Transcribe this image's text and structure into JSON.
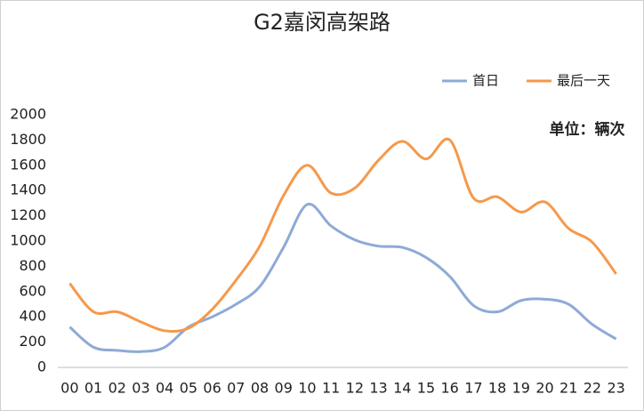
{
  "chart_data": {
    "type": "line",
    "title": "G2嘉闵高架路",
    "annotation": "单位：辆次",
    "categories": [
      "00",
      "01",
      "02",
      "03",
      "04",
      "05",
      "06",
      "07",
      "08",
      "09",
      "10",
      "11",
      "12",
      "13",
      "14",
      "15",
      "16",
      "17",
      "18",
      "19",
      "20",
      "21",
      "22",
      "23"
    ],
    "series": [
      {
        "name": "首日",
        "color": "#8eaad6",
        "values": [
          320,
          160,
          135,
          125,
          160,
          320,
          400,
          500,
          640,
          950,
          1290,
          1120,
          1010,
          960,
          950,
          870,
          720,
          490,
          440,
          530,
          540,
          500,
          340,
          225
        ]
      },
      {
        "name": "最后一天",
        "color": "#f5994b",
        "values": [
          665,
          440,
          440,
          360,
          290,
          310,
          460,
          690,
          960,
          1360,
          1600,
          1380,
          1420,
          1640,
          1790,
          1650,
          1800,
          1340,
          1350,
          1230,
          1310,
          1100,
          990,
          740
        ]
      }
    ],
    "ylim": [
      0,
      2000
    ],
    "yticks": [
      0,
      200,
      400,
      600,
      800,
      1000,
      1200,
      1400,
      1600,
      1800,
      2000
    ],
    "grid": false,
    "smooth": true,
    "legend": "top-right"
  }
}
